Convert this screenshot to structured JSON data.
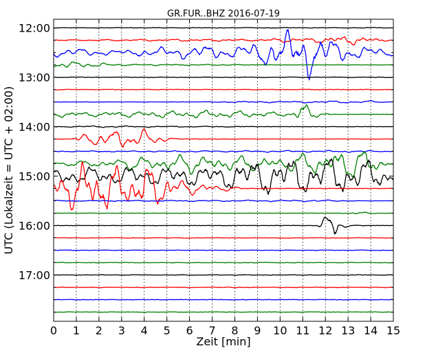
{
  "chart_data": {
    "type": "line",
    "title": "GR.FUR..BHZ 2016-07-19",
    "xlabel": "Zeit  [min]",
    "ylabel": "UTC (Lokalzeit = UTC + 02:00)",
    "xlim": [
      0,
      15
    ],
    "x_ticks": [
      "0",
      "1",
      "2",
      "3",
      "4",
      "5",
      "6",
      "7",
      "8",
      "9",
      "10",
      "11",
      "12",
      "13",
      "14",
      "15"
    ],
    "y_ticks": [
      "12:00",
      "13:00",
      "14:00",
      "15:00",
      "16:00",
      "17:00"
    ],
    "row_interval_minutes": 15,
    "first_row": "12:00",
    "row_count": 24,
    "grid": true,
    "series_colors": [
      "#000000",
      "#ff0000",
      "#0000ff",
      "#008000"
    ],
    "events": [
      {
        "row": 1,
        "activity": [
          [
            0,
            0.05
          ],
          [
            6.5,
            0.15
          ],
          [
            8,
            0.15
          ],
          [
            9,
            0.1
          ],
          [
            10,
            0.3
          ],
          [
            11,
            0.25
          ],
          [
            13,
            0.6
          ],
          [
            14,
            0.3
          ]
        ]
      },
      {
        "row": 2,
        "activity": [
          [
            0,
            0.6
          ],
          [
            3,
            0.3
          ],
          [
            5,
            0.7
          ],
          [
            6.5,
            0.9
          ],
          [
            8,
            0.7
          ],
          [
            10,
            2.2
          ],
          [
            11,
            3.5
          ],
          [
            12,
            2.0
          ],
          [
            13,
            1.0
          ],
          [
            15,
            0.4
          ]
        ]
      },
      {
        "row": 3,
        "activity": [
          [
            0,
            0.5
          ],
          [
            1,
            0.4
          ],
          [
            3,
            0.1
          ],
          [
            8,
            0.05
          ]
        ]
      },
      {
        "row": 6,
        "activity": [
          [
            7,
            0.05
          ],
          [
            10,
            0.1
          ],
          [
            14,
            0.15
          ]
        ]
      },
      {
        "row": 7,
        "activity": [
          [
            0,
            0.4
          ],
          [
            1,
            0.25
          ],
          [
            6,
            0.5
          ],
          [
            7,
            0.5
          ],
          [
            9,
            0.4
          ],
          [
            10.5,
            0.2
          ],
          [
            11,
            1.8
          ],
          [
            11.5,
            0.4
          ]
        ]
      },
      {
        "row": 8,
        "activity": [
          [
            0.5,
            0.05
          ],
          [
            1,
            0.1
          ],
          [
            8,
            0.05
          ]
        ]
      },
      {
        "row": 9,
        "activity": [
          [
            1.5,
            0.8
          ],
          [
            2.5,
            1.0
          ],
          [
            3.7,
            1.5
          ],
          [
            4.5,
            0.6
          ]
        ]
      },
      {
        "row": 10,
        "activity": [
          [
            0,
            0.05
          ],
          [
            12,
            0.1
          ],
          [
            14,
            0.1
          ]
        ]
      },
      {
        "row": 11,
        "activity": [
          [
            0,
            0.15
          ],
          [
            6,
            1.2
          ],
          [
            7,
            1.0
          ],
          [
            10,
            0.9
          ],
          [
            13,
            2.0
          ],
          [
            14,
            1.5
          ]
        ]
      },
      {
        "row": 12,
        "activity": [
          [
            0,
            1.0
          ],
          [
            3,
            1.2
          ],
          [
            7,
            1.3
          ],
          [
            9,
            2.3
          ],
          [
            12,
            2.5
          ],
          [
            14,
            2.0
          ],
          [
            15,
            1.0
          ]
        ]
      },
      {
        "row": 13,
        "activity": [
          [
            0,
            1.5
          ],
          [
            1,
            3.0
          ],
          [
            2,
            3.5
          ],
          [
            3,
            2.5
          ],
          [
            4,
            3.0
          ],
          [
            5,
            2.0
          ],
          [
            6,
            0.8
          ],
          [
            8,
            0.2
          ]
        ]
      },
      {
        "row": 14,
        "activity": [
          [
            0,
            0.05
          ],
          [
            12.5,
            0.1
          ]
        ]
      },
      {
        "row": 15,
        "activity": [
          [
            13.5,
            0.15
          ]
        ]
      },
      {
        "row": 16,
        "activity": [
          [
            12.4,
            2.5
          ],
          [
            12.6,
            0.3
          ]
        ]
      }
    ]
  }
}
